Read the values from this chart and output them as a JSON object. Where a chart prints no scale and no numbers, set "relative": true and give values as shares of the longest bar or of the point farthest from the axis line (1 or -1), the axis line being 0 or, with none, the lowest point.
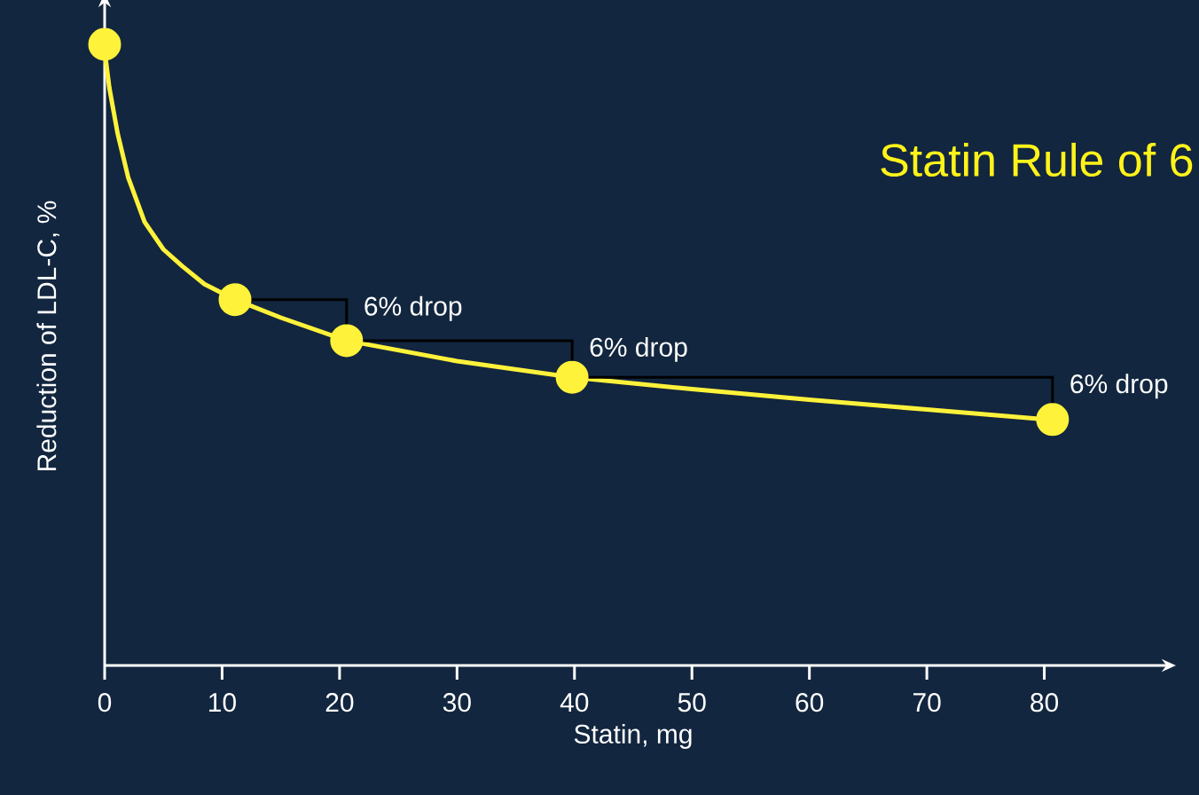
{
  "chart_data": {
    "type": "line",
    "title": "Statin Rule of 6",
    "xlabel": "Statin, mg",
    "ylabel": "Reduction of LDL-C, %",
    "relative": true,
    "xlim": [
      0,
      90
    ],
    "xticks": [
      0,
      10,
      20,
      30,
      40,
      50,
      60,
      70,
      80
    ],
    "series": [
      {
        "color": "#fff23a",
        "marker": "none",
        "x": [
          0.1,
          0.4,
          1.1,
          2,
          3.4,
          5,
          6.6,
          8.5,
          11.1,
          15,
          20.6,
          30,
          39.8,
          50,
          60,
          70,
          79.5
        ],
        "values": [
          0.975,
          0.93,
          0.857,
          0.786,
          0.714,
          0.67,
          0.643,
          0.614,
          0.589,
          0.56,
          0.523,
          0.49,
          0.464,
          0.445,
          0.428,
          0.412,
          0.397
        ]
      },
      {
        "type": "scatter",
        "color": "#fff23a",
        "marker": "circle",
        "x": [
          0,
          11.1,
          20.6,
          39.8,
          80.7
        ],
        "values": [
          1.0,
          0.589,
          0.523,
          0.464,
          0.396
        ]
      }
    ],
    "annotations": [
      "6% drop",
      "6% drop",
      "6% drop"
    ]
  }
}
